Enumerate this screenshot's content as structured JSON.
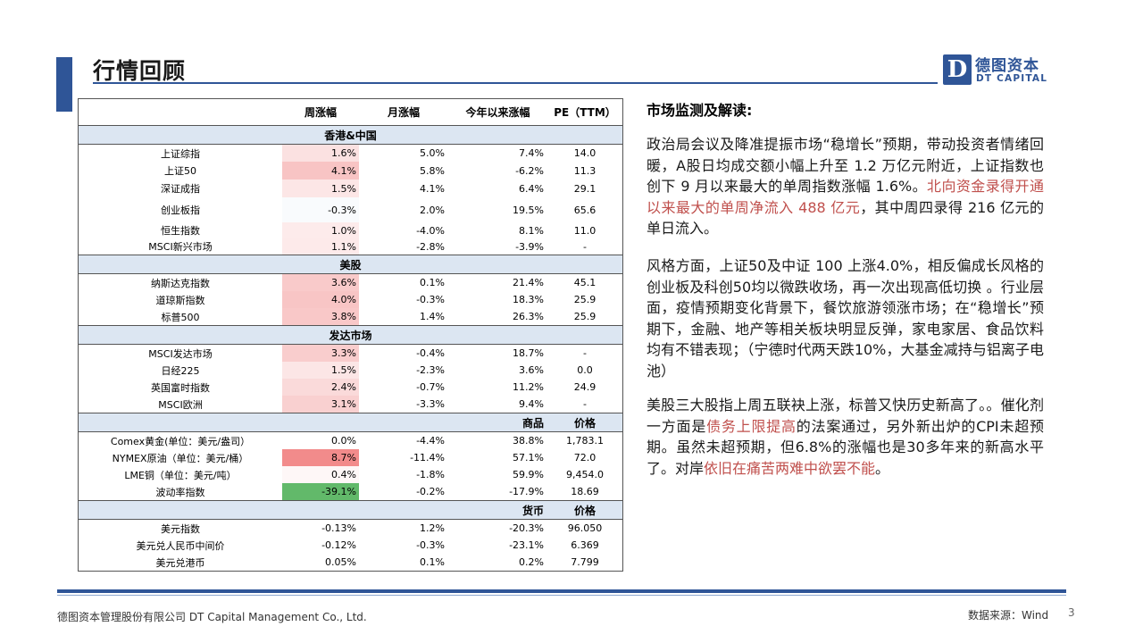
{
  "header": {
    "title": "行情回顾",
    "logo_cn": "德图资本",
    "logo_en": "DT CAPITAL",
    "logo_letter": "D"
  },
  "table": {
    "columns": [
      "",
      "周涨幅",
      "月涨幅",
      "今年以来涨幅",
      "PE（TTM）"
    ],
    "sections": [
      {
        "title": "香港&中国",
        "col4": "",
        "col5": "",
        "rows": [
          {
            "name": "上证综指",
            "week": "1.6%",
            "month": "5.0%",
            "ytd": "7.4%",
            "pe": "14.0",
            "week_color": "#fbe1e1"
          },
          {
            "name": "上证50",
            "week": "4.1%",
            "month": "5.8%",
            "ytd": "-6.2%",
            "pe": "11.3",
            "week_color": "#f8c4c4"
          },
          {
            "name": "深证成指",
            "week": "1.5%",
            "month": "4.1%",
            "ytd": "6.4%",
            "pe": "29.1",
            "week_color": "#fce6e6"
          },
          {
            "name": "创业板指",
            "week": "-0.3%",
            "month": "2.0%",
            "ytd": "19.5%",
            "pe": "65.6",
            "week_color": "#f9fbfd"
          },
          {
            "name": "恒生指数",
            "week": "1.0%",
            "month": "-4.0%",
            "ytd": "8.1%",
            "pe": "11.0",
            "week_color": "#fdebeb"
          },
          {
            "name": "MSCI新兴市场",
            "week": "1.1%",
            "month": "-2.8%",
            "ytd": "-3.9%",
            "pe": "-",
            "week_color": "#fdeaea"
          }
        ]
      },
      {
        "title": "美股",
        "col4": "",
        "col5": "",
        "rows": [
          {
            "name": "纳斯达克指数",
            "week": "3.6%",
            "month": "0.1%",
            "ytd": "21.4%",
            "pe": "45.1",
            "week_color": "#f9caca"
          },
          {
            "name": "道琼斯指数",
            "week": "4.0%",
            "month": "-0.3%",
            "ytd": "18.3%",
            "pe": "25.9",
            "week_color": "#f8c5c5"
          },
          {
            "name": "标普500",
            "week": "3.8%",
            "month": "1.4%",
            "ytd": "26.3%",
            "pe": "25.9",
            "week_color": "#f9c8c8"
          }
        ]
      },
      {
        "title": "发达市场",
        "col4": "",
        "col5": "",
        "rows": [
          {
            "name": "MSCI发达市场",
            "week": "3.3%",
            "month": "-0.4%",
            "ytd": "18.7%",
            "pe": "-",
            "week_color": "#f9cdcd"
          },
          {
            "name": "日经225",
            "week": "1.5%",
            "month": "-2.3%",
            "ytd": "3.6%",
            "pe": "0.0",
            "week_color": "#fce6e6"
          },
          {
            "name": "英国富时指数",
            "week": "2.4%",
            "month": "-0.7%",
            "ytd": "11.2%",
            "pe": "24.9",
            "week_color": "#fadada"
          },
          {
            "name": "MSCI欧洲",
            "week": "3.1%",
            "month": "-3.3%",
            "ytd": "9.4%",
            "pe": "-",
            "week_color": "#f9d0d0"
          }
        ]
      },
      {
        "title": "",
        "col4": "商品",
        "col5": "价格",
        "rows": [
          {
            "name": "Comex黄金(单位：美元/盎司）",
            "week": "0.0%",
            "month": "-4.4%",
            "ytd": "38.8%",
            "pe": "1,783.1",
            "week_color": "#ffffff"
          },
          {
            "name": "NYMEX原油（单位：美元/桶）",
            "week": "8.7%",
            "month": "-11.4%",
            "ytd": "57.1%",
            "pe": "72.0",
            "week_color": "#f28b8b"
          },
          {
            "name": "LME铜（单位：美元/吨）",
            "week": "0.4%",
            "month": "-1.8%",
            "ytd": "59.9%",
            "pe": "9,454.0",
            "week_color": "#fef7f7"
          },
          {
            "name": "波动率指数",
            "week": "-39.1%",
            "month": "-0.2%",
            "ytd": "-17.9%",
            "pe": "18.69",
            "week_color": "#62b96a"
          }
        ]
      },
      {
        "title": "",
        "col4": "货币",
        "col5": "价格",
        "rows": [
          {
            "name": "美元指数",
            "week": "-0.13%",
            "month": "1.2%",
            "ytd": "-20.3%",
            "pe": "96.050",
            "week_color": "#ffffff"
          },
          {
            "name": "美元兑人民币中间价",
            "week": "-0.12%",
            "month": "-0.3%",
            "ytd": "-23.1%",
            "pe": "6.369",
            "week_color": "#ffffff"
          },
          {
            "name": "美元兑港币",
            "week": "0.05%",
            "month": "0.1%",
            "ytd": "0.2%",
            "pe": "7.799",
            "week_color": "#ffffff"
          }
        ]
      }
    ]
  },
  "commentary": {
    "title": "市场监测及解读:",
    "p1a": "政治局会议及降准提振市场“稳增长”预期，带动投资者情绪回暖，A股日均成交额小幅上升至 1.2 万亿元附近，上证指数也创下 9 月以来最大的单周指数涨幅 1.6%。",
    "p1_hl": "北向资金录得开通以来最大的单周净流入 488 亿元",
    "p1b": "，其中周四录得 216 亿元的单日流入。",
    "p2": "风格方面，上证50及中证 100 上涨4.0%，相反偏成长风格的创业板及科创50均以微跌收场，再一次出现高低切换 。行业层面，疫情预期变化背景下，餐饮旅游领涨市场；在“稳增长”预期下，金融、地产等相关板块明显反弹，家电家居、食品饮料均有不错表现；（宁德时代两天跌10%，大基金减持与铝离子电池）",
    "p3a": "美股三大股指上周五联袂上涨，标普又快历史新高了。。催化剂一方面是",
    "p3_hl1": "债务上限提高",
    "p3b": "的法案通过，另外新出炉的CPI未超预期。虽然未超预期，但6.8%的涨幅也是30多年来的新高水平了。对岸",
    "p3_hl2": "依旧在痛苦两难中欲罢不能",
    "p3c": "。"
  },
  "footer": {
    "company": "德图资本管理股份有限公司  DT Capital  Management  Co., Ltd.",
    "source": "数据来源：Wind",
    "page": "3"
  },
  "colors": {
    "accent": "#2f5597",
    "highlight": "#c0504d",
    "section_bg": "#dce6f2"
  }
}
